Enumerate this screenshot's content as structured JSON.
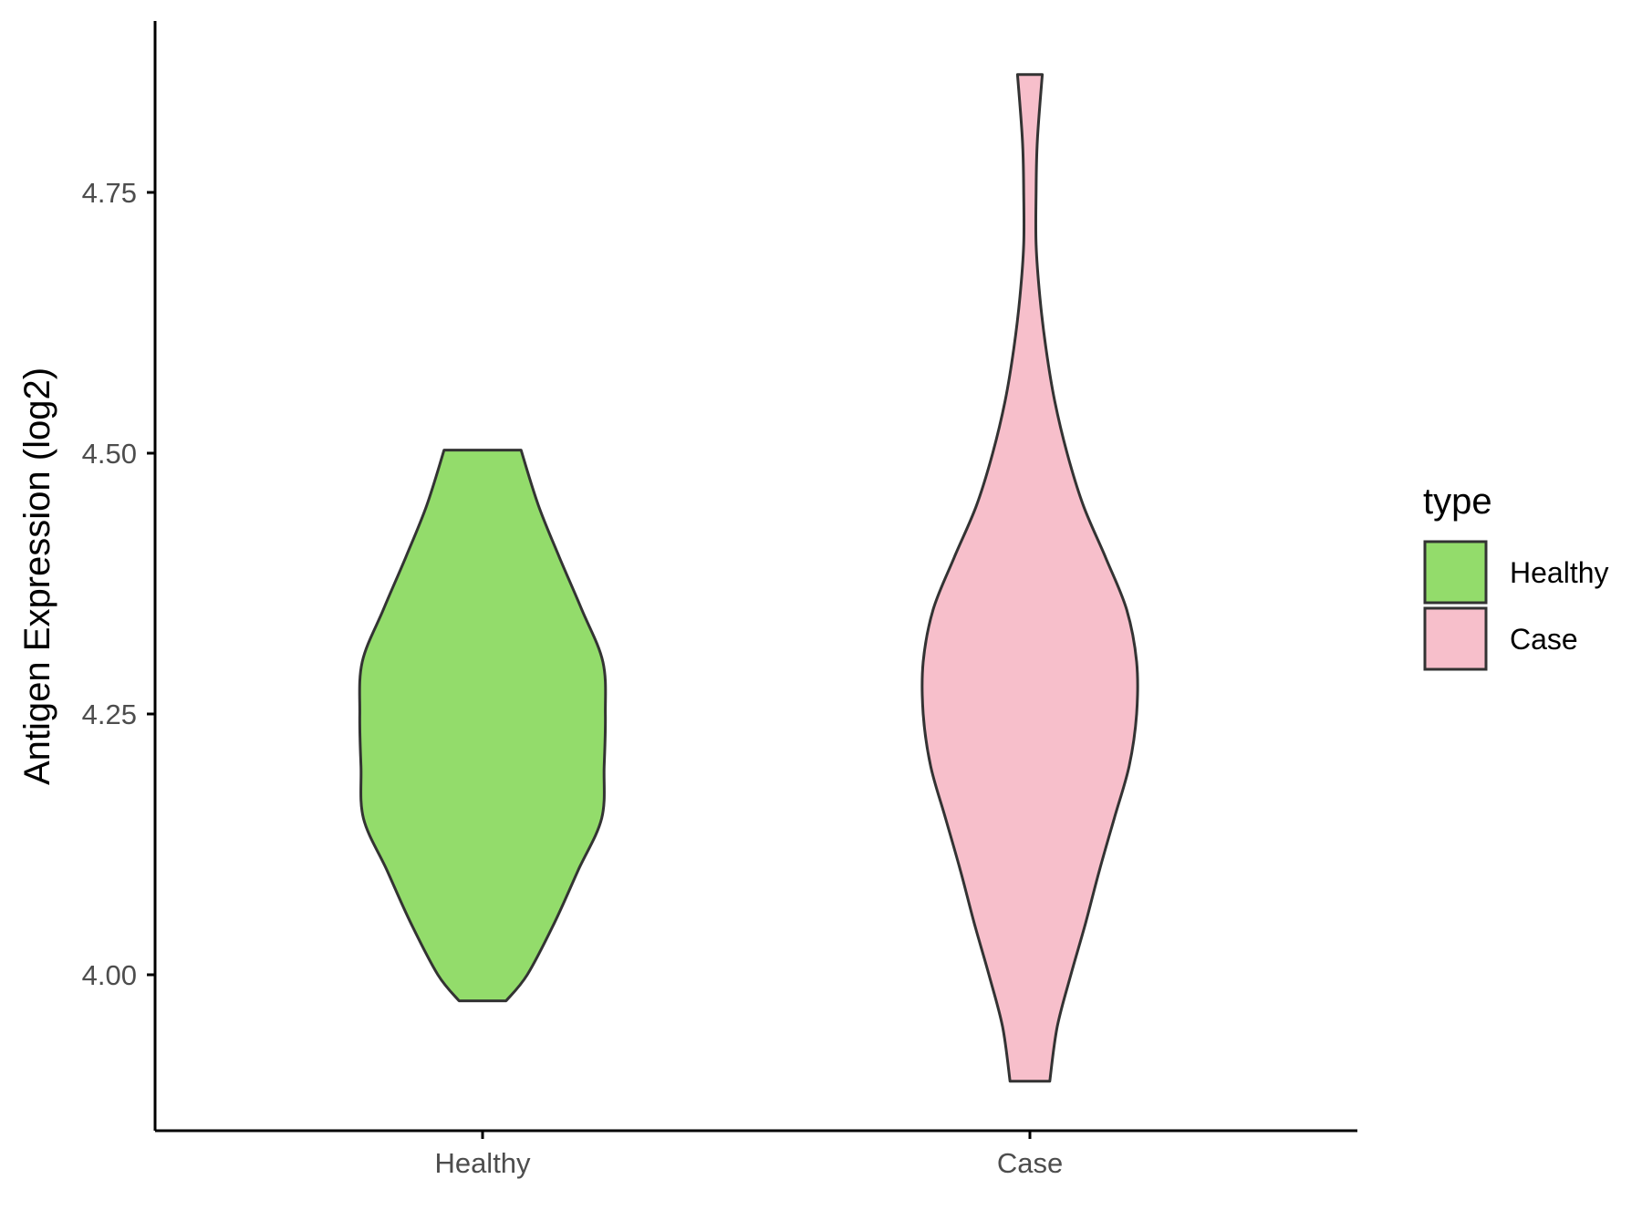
{
  "chart_data": {
    "type": "violin",
    "title": "",
    "xlabel": "",
    "ylabel": "Antigen Expression (log2)",
    "categories": [
      "Healthy",
      "Case"
    ],
    "ylim": [
      3.86,
      4.92
    ],
    "yticks": [
      4.0,
      4.25,
      4.5,
      4.75
    ],
    "ytick_labels": [
      "4.00",
      "4.25",
      "4.50",
      "4.75"
    ],
    "grid": false,
    "legend": {
      "title": "type",
      "position": "right",
      "entries": [
        {
          "label": "Healthy",
          "color": "#93DC6B"
        },
        {
          "label": "Case",
          "color": "#F7BFCB"
        }
      ]
    },
    "series": [
      {
        "category": "Healthy",
        "color": "#93DC6B",
        "min": 3.975,
        "max": 4.503,
        "density": [
          [
            3.975,
            0.19
          ],
          [
            4.0,
            0.36
          ],
          [
            4.05,
            0.58
          ],
          [
            4.1,
            0.77
          ],
          [
            4.15,
            0.96
          ],
          [
            4.2,
            0.98
          ],
          [
            4.25,
            0.99
          ],
          [
            4.3,
            0.97
          ],
          [
            4.35,
            0.8
          ],
          [
            4.4,
            0.62
          ],
          [
            4.45,
            0.45
          ],
          [
            4.503,
            0.31
          ]
        ]
      },
      {
        "category": "Case",
        "color": "#F7BFCB",
        "min": 3.898,
        "max": 4.863,
        "density": [
          [
            3.898,
            0.16
          ],
          [
            3.95,
            0.22
          ],
          [
            4.0,
            0.33
          ],
          [
            4.05,
            0.45
          ],
          [
            4.1,
            0.56
          ],
          [
            4.15,
            0.68
          ],
          [
            4.2,
            0.8
          ],
          [
            4.25,
            0.86
          ],
          [
            4.3,
            0.86
          ],
          [
            4.35,
            0.78
          ],
          [
            4.4,
            0.61
          ],
          [
            4.45,
            0.43
          ],
          [
            4.5,
            0.3
          ],
          [
            4.55,
            0.2
          ],
          [
            4.6,
            0.13
          ],
          [
            4.65,
            0.08
          ],
          [
            4.7,
            0.05
          ],
          [
            4.75,
            0.05
          ],
          [
            4.8,
            0.06
          ],
          [
            4.863,
            0.1
          ]
        ]
      }
    ]
  }
}
